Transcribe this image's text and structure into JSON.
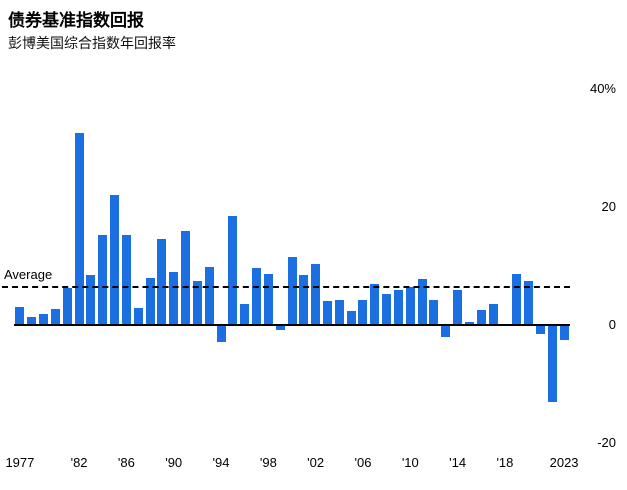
{
  "header": {
    "title": "债券基准指数回报",
    "subtitle": "彭博美国综合指数年回报率"
  },
  "chart_data": {
    "type": "bar",
    "title": "债券基准指数回报",
    "subtitle": "彭博美国综合指数年回报率",
    "xlabel": "",
    "ylabel": "",
    "ylim": [
      -22,
      41
    ],
    "grid": false,
    "legend": "none",
    "bar_color": "#1c6fe0",
    "average_label": "Average",
    "average_value": 6.5,
    "x": [
      1977,
      1978,
      1979,
      1980,
      1981,
      1982,
      1983,
      1984,
      1985,
      1986,
      1987,
      1988,
      1989,
      1990,
      1991,
      1992,
      1993,
      1994,
      1995,
      1996,
      1997,
      1998,
      1999,
      2000,
      2001,
      2002,
      2003,
      2004,
      2005,
      2006,
      2007,
      2008,
      2009,
      2010,
      2011,
      2012,
      2013,
      2014,
      2015,
      2016,
      2017,
      2018,
      2019,
      2020,
      2021,
      2022,
      2023
    ],
    "values": [
      3.0,
      1.4,
      1.9,
      2.7,
      6.3,
      32.6,
      8.4,
      15.2,
      22.1,
      15.3,
      2.8,
      7.9,
      14.5,
      9.0,
      16.0,
      7.4,
      9.8,
      -2.9,
      18.5,
      3.6,
      9.7,
      8.7,
      -0.8,
      11.6,
      8.4,
      10.3,
      4.1,
      4.3,
      2.4,
      4.3,
      7.0,
      5.2,
      5.9,
      6.5,
      7.8,
      4.2,
      -2.0,
      6.0,
      0.5,
      2.6,
      3.5,
      0.0,
      8.7,
      7.5,
      -1.5,
      -13.0,
      -2.5
    ],
    "yticks": [
      {
        "value": 40,
        "label": "40%"
      },
      {
        "value": 20,
        "label": "20"
      },
      {
        "value": 0,
        "label": "0"
      },
      {
        "value": -20,
        "label": "-20"
      }
    ],
    "xticks": [
      {
        "year": 1977,
        "label": "1977"
      },
      {
        "year": 1982,
        "label": "'82"
      },
      {
        "year": 1986,
        "label": "'86"
      },
      {
        "year": 1990,
        "label": "'90"
      },
      {
        "year": 1994,
        "label": "'94"
      },
      {
        "year": 1998,
        "label": "'98"
      },
      {
        "year": 2002,
        "label": "'02"
      },
      {
        "year": 2006,
        "label": "'06"
      },
      {
        "year": 2010,
        "label": "'10"
      },
      {
        "year": 2014,
        "label": "'14"
      },
      {
        "year": 2018,
        "label": "'18"
      },
      {
        "year": 2023,
        "label": "2023"
      }
    ]
  }
}
